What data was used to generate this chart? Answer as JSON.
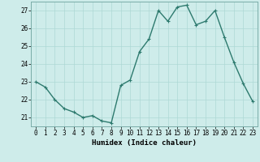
{
  "x": [
    0,
    1,
    2,
    3,
    4,
    5,
    6,
    7,
    8,
    9,
    10,
    11,
    12,
    13,
    14,
    15,
    16,
    17,
    18,
    19,
    20,
    21,
    22,
    23
  ],
  "y": [
    23.0,
    22.7,
    22.0,
    21.5,
    21.3,
    21.0,
    21.1,
    20.8,
    20.7,
    22.8,
    23.1,
    24.7,
    25.4,
    27.0,
    26.4,
    27.2,
    27.3,
    26.2,
    26.4,
    27.0,
    25.5,
    24.1,
    22.9,
    21.9
  ],
  "line_color": "#2d7a6e",
  "marker": "+",
  "marker_size": 3,
  "background_color": "#ceecea",
  "grid_color": "#aed8d5",
  "xlabel": "Humidex (Indice chaleur)",
  "xlim": [
    -0.5,
    23.5
  ],
  "ylim": [
    20.5,
    27.5
  ],
  "yticks": [
    21,
    22,
    23,
    24,
    25,
    26,
    27
  ],
  "xticks": [
    0,
    1,
    2,
    3,
    4,
    5,
    6,
    7,
    8,
    9,
    10,
    11,
    12,
    13,
    14,
    15,
    16,
    17,
    18,
    19,
    20,
    21,
    22,
    23
  ],
  "tick_fontsize": 5.5,
  "xlabel_fontsize": 6.5,
  "line_width": 1.0
}
